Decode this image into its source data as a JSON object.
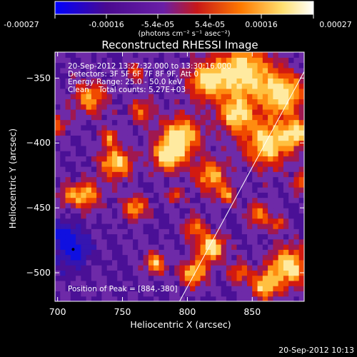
{
  "chart_data": {
    "type": "heatmap",
    "title": "Reconstructed RHESSI Image",
    "xlabel": "Heliocentric X (arcsec)",
    "ylabel": "Heliocentric Y (arcsec)",
    "xlim": [
      698,
      890
    ],
    "ylim": [
      -522,
      -330
    ],
    "x_ticks": [
      700,
      750,
      800,
      850
    ],
    "y_ticks": [
      -500,
      -450,
      -400,
      -350
    ],
    "colorbar": {
      "ticks": [
        "-0.00027",
        "-0.00016",
        "-5.4e-05",
        "5.4e-05",
        "0.00016",
        "0.00027"
      ],
      "tick_values": [
        -0.00027,
        -0.00016,
        -5.4e-05,
        5.4e-05,
        0.00016,
        0.00027
      ],
      "units": "(photons cm⁻² s⁻¹ asec⁻²)",
      "colors": [
        "#0000ff",
        "#4a0a90",
        "#7a2faa",
        "#c81818",
        "#ff7a00",
        "#ffe070",
        "#ffffff"
      ]
    },
    "annotations": [
      "20-Sep-2012 13:27:32.000 to 13:30:16.000",
      "Detectors: 3F 5F 6F 7F 8F 9F, Att 0",
      "Energy Range: 25.0 - 50.0 keV",
      "Clean    Total counts: 5.27E+03"
    ],
    "peak_label": "Position of Peak = [884,-380]",
    "limb_line": [
      [
        794,
        -522
      ],
      [
        890,
        -345
      ]
    ],
    "grid": false
  },
  "footer_timestamp": "20-Sep-2012 10:13"
}
